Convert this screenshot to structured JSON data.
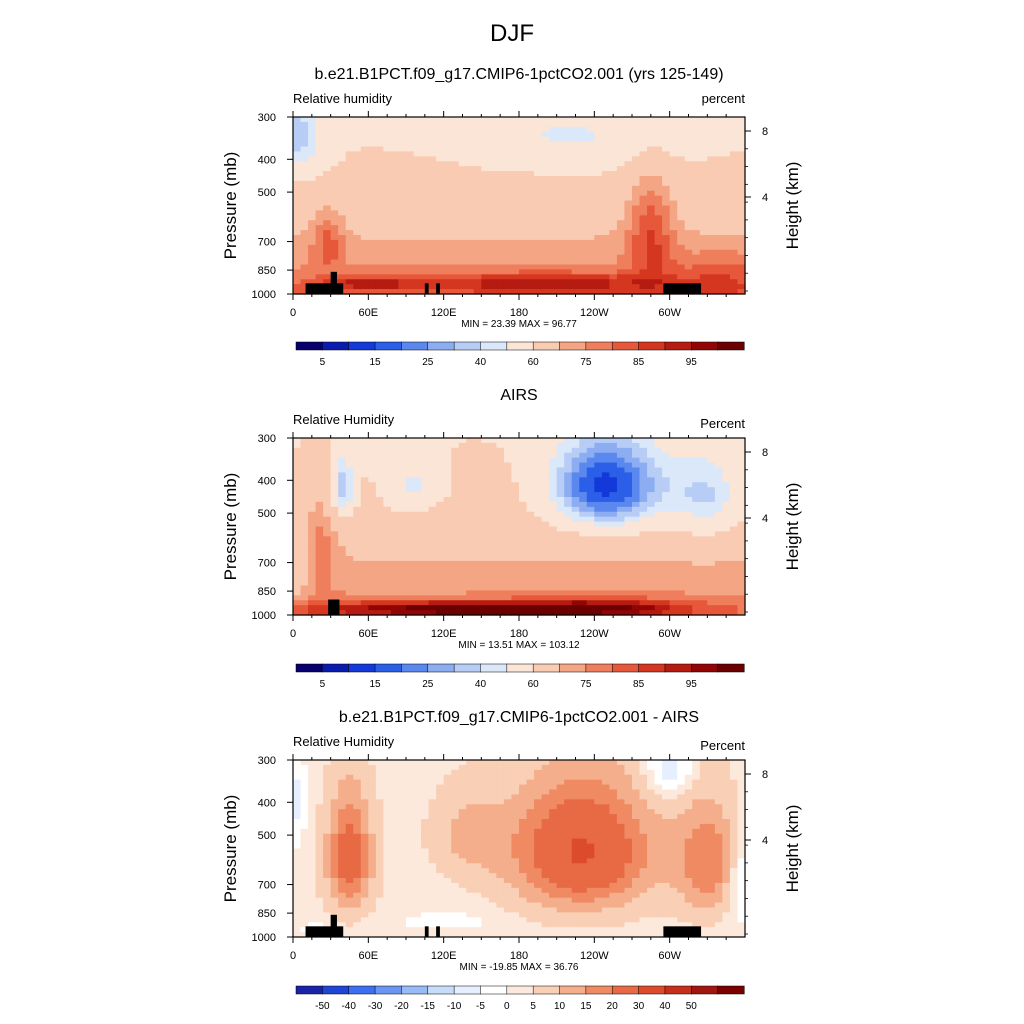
{
  "page": {
    "title": "DJF"
  },
  "colors": {
    "rh_scale": [
      "#08006e",
      "#0a1cb0",
      "#1339d9",
      "#2b5fe8",
      "#5b88ee",
      "#8cadf2",
      "#b7cdf6",
      "#dbe8fa",
      "#fbe5d6",
      "#f8cbb2",
      "#f4a584",
      "#ef7e5c",
      "#e7573a",
      "#d4361f",
      "#b51b10",
      "#920505",
      "#6a0000"
    ],
    "diff_scale": [
      "#1a22a8",
      "#1f45d6",
      "#3b6ef0",
      "#6a95f3",
      "#99bbf5",
      "#c6dcf8",
      "#e6efff",
      "#ffffff",
      "#fde9dc",
      "#f9cfb5",
      "#f5ae8b",
      "#ef8a63",
      "#e86a45",
      "#dc4c2c",
      "#c6301b",
      "#a31510",
      "#7a0000"
    ]
  },
  "chart_data": [
    {
      "type": "heatmap",
      "panel_title": "b.e21.B1PCT.f09_g17.CMIP6-1pctCO2.001 (yrs 125-149)",
      "left_label": "Relative humidity",
      "right_label": "percent",
      "ylabel": "Pressure (mb)",
      "y2label": "Height (km)",
      "x_ticks": [
        "0",
        "60E",
        "120E",
        "180",
        "120W",
        "60W"
      ],
      "y_ticks": [
        "300",
        "400",
        "500",
        "700",
        "850",
        "1000"
      ],
      "y2_ticks": [
        "8",
        "4"
      ],
      "minmax": "MIN =  23.39  MAX =  96.77",
      "colorbar_labels": [
        "5",
        "15",
        "25",
        "40",
        "60",
        "75",
        "85",
        "95"
      ],
      "levels": [
        5,
        10,
        15,
        20,
        25,
        30,
        35,
        40,
        50,
        60,
        65,
        70,
        75,
        80,
        85,
        90,
        95
      ],
      "scale": "rh"
    },
    {
      "type": "heatmap",
      "panel_title": "AIRS",
      "left_label": "Relative Humidity",
      "right_label": "Percent",
      "ylabel": "Pressure (mb)",
      "y2label": "Height (km)",
      "x_ticks": [
        "0",
        "60E",
        "120E",
        "180",
        "120W",
        "60W"
      ],
      "y_ticks": [
        "300",
        "400",
        "500",
        "700",
        "850",
        "1000"
      ],
      "y2_ticks": [
        "8",
        "4"
      ],
      "minmax": "MIN =  13.51  MAX = 103.12",
      "colorbar_labels": [
        "5",
        "15",
        "25",
        "40",
        "60",
        "75",
        "85",
        "95"
      ],
      "levels": [
        5,
        10,
        15,
        20,
        25,
        30,
        35,
        40,
        50,
        60,
        65,
        70,
        75,
        80,
        85,
        90,
        95
      ],
      "scale": "rh"
    },
    {
      "type": "heatmap",
      "panel_title": "b.e21.B1PCT.f09_g17.CMIP6-1pctCO2.001 - AIRS",
      "left_label": "Relative Humidity",
      "right_label": "Percent",
      "ylabel": "Pressure (mb)",
      "y2label": "Height (km)",
      "x_ticks": [
        "0",
        "60E",
        "120E",
        "180",
        "120W",
        "60W"
      ],
      "y_ticks": [
        "300",
        "400",
        "500",
        "700",
        "850",
        "1000"
      ],
      "y2_ticks": [
        "8",
        "4"
      ],
      "minmax": "MIN = -19.85  MAX =  36.76",
      "colorbar_labels": [
        "-50",
        "-40",
        "-30",
        "-20",
        "-15",
        "-10",
        "-5",
        "0",
        "5",
        "10",
        "15",
        "20",
        "30",
        "40",
        "50"
      ],
      "levels": [
        -50,
        -40,
        -30,
        -20,
        -15,
        -10,
        -5,
        0,
        5,
        10,
        15,
        20,
        30,
        40,
        50
      ],
      "scale": "diff"
    }
  ]
}
